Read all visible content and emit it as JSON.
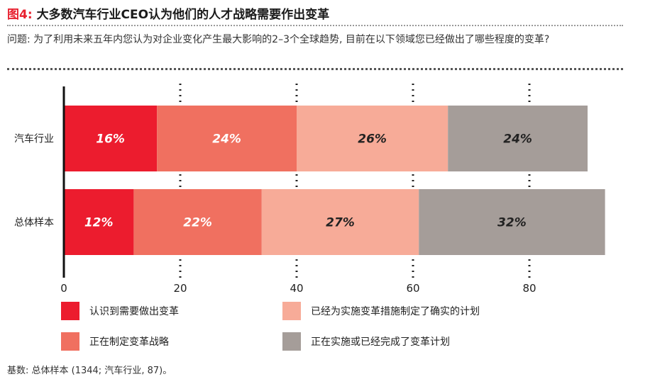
{
  "header": {
    "fig_label": "图4:",
    "title": "大多数汽车行业CEO认为他们的人才战略需要作出变革"
  },
  "question": "问题: 为了利用未来五年内您认为对企业变化产生最大影响的2–3个全球趋势, 目前在以下领域您已经做出了哪些程度的变革?",
  "footnote": "基数: 总体样本 (1344; 汽车行业, 87)。",
  "colors": {
    "accent": "#e8212f",
    "s1": "#ec1c2e",
    "s2": "#f07060",
    "s3": "#f7ab98",
    "s4": "#a59d99"
  },
  "chart_data": {
    "type": "bar",
    "orientation": "horizontal",
    "stacked": true,
    "categories": [
      "汽车行业",
      "总体样本"
    ],
    "series": [
      {
        "name": "认识到需要做出变革",
        "values": [
          16,
          12
        ],
        "labels": [
          "16%",
          "12%"
        ]
      },
      {
        "name": "正在制定变革战略",
        "values": [
          24,
          22
        ],
        "labels": [
          "24%",
          "22%"
        ]
      },
      {
        "name": "已经为实施变革措施制定了确实的计划",
        "values": [
          26,
          27
        ],
        "labels": [
          "26%",
          "27%"
        ]
      },
      {
        "name": "正在实施或已经完成了变革计划",
        "values": [
          24,
          32
        ],
        "labels": [
          "24%",
          "32%"
        ]
      }
    ],
    "x_ticks": [
      "0",
      "20",
      "40",
      "60",
      "80"
    ],
    "xlim": [
      0,
      100
    ],
    "gridlines": "dotted",
    "legend_position": "bottom"
  }
}
